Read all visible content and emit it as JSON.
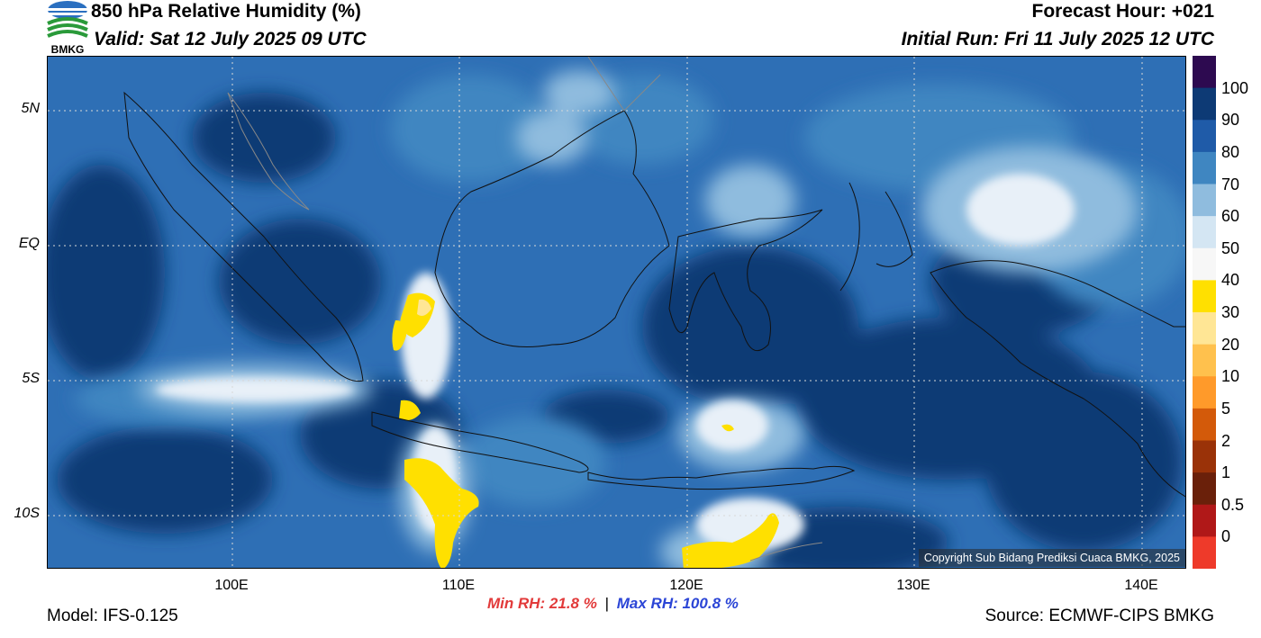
{
  "header": {
    "title": "850 hPa Relative Humidity (%)",
    "valid": "Valid: Sat 12 July 2025 09 UTC",
    "forecast_hour": "Forecast Hour: +021",
    "initial_run": "Initial Run: Fri 11 July 2025 12 UTC"
  },
  "logo": {
    "text": "BMKG",
    "icon": "bmkg-logo-icon"
  },
  "axes": {
    "lat_ticks": [
      "5N",
      "EQ",
      "5S",
      "10S"
    ],
    "lon_ticks": [
      "100E",
      "110E",
      "120E",
      "130E",
      "140E"
    ]
  },
  "colorbar": {
    "labels": [
      "100",
      "90",
      "80",
      "70",
      "60",
      "50",
      "40",
      "30",
      "20",
      "10",
      "5",
      "2",
      "1",
      "0.5",
      "0"
    ],
    "colors": [
      "#2d0a50",
      "#0d3a75",
      "#1f5ba8",
      "#3f86c1",
      "#8fbcde",
      "#d4e6f3",
      "#f7f7f7",
      "#ffe000",
      "#ffe695",
      "#ffc14d",
      "#ff9a2a",
      "#d35a0a",
      "#9a3208",
      "#6a200a",
      "#b01818",
      "#ee3a2a"
    ]
  },
  "stats": {
    "min_rh": "Min RH:  21.8 %",
    "separator": "|",
    "max_rh": "Max RH: 100.8 %"
  },
  "footer": {
    "model": "Model: IFS-0.125",
    "source": "Source: ECMWF-CIPS BMKG",
    "copyright": "Copyright Sub Bidang Prediksi Cuaca BMKG, 2025"
  }
}
